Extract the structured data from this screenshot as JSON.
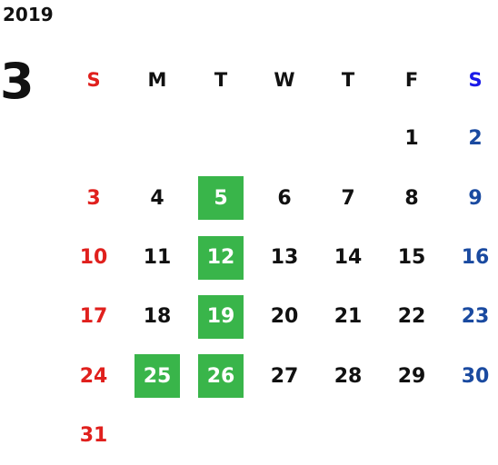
{
  "calendar": {
    "year": "2019",
    "month": "3",
    "weekdays": [
      "S",
      "M",
      "T",
      "W",
      "T",
      "F",
      "S"
    ],
    "highlight_color": "#39b54a",
    "sunday_color": "#e0201d",
    "saturday_color": "#1a4aa0",
    "weeks": [
      [
        "",
        "",
        "",
        "",
        "",
        "1",
        "2"
      ],
      [
        "3",
        "4",
        "5",
        "6",
        "7",
        "8",
        "9"
      ],
      [
        "10",
        "11",
        "12",
        "13",
        "14",
        "15",
        "16"
      ],
      [
        "17",
        "18",
        "19",
        "20",
        "21",
        "22",
        "23"
      ],
      [
        "24",
        "25",
        "26",
        "27",
        "28",
        "29",
        "30"
      ],
      [
        "31",
        "",
        "",
        "",
        "",
        "",
        ""
      ]
    ],
    "highlighted_days": [
      "5",
      "12",
      "19",
      "25",
      "26"
    ]
  }
}
